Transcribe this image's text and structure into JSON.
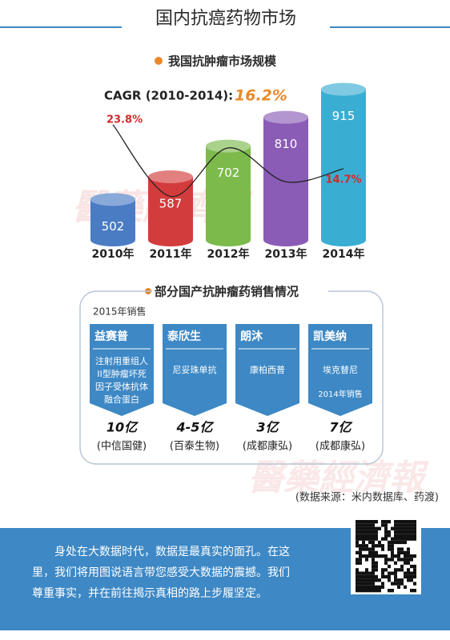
{
  "header": {
    "title": "国内抗癌药物市场"
  },
  "watermark": "醫藥經濟報",
  "chart_data": {
    "type": "bar",
    "title": "我国抗肿瘤市场规模",
    "annotation_label": "CAGR (2010-2014):",
    "annotation_value": "16.2%",
    "categories": [
      "2010年",
      "2011年",
      "2012年",
      "2013年",
      "2014年"
    ],
    "ylim": [
      350,
      950
    ],
    "y2lim": [
      0,
      33
    ],
    "series": [
      {
        "type": "bar",
        "colors": [
          "#4a7cc4",
          "#d33c3c",
          "#7cba4c",
          "#8a5cb6",
          "#3aaed2"
        ],
        "values": [
          502,
          587,
          702,
          810,
          915
        ]
      },
      {
        "type": "line",
        "axis": "y2",
        "color": "#222222",
        "values": [
          23.8,
          9,
          19,
          12,
          14.7
        ],
        "value_labels": [
          "23.8%",
          null,
          null,
          null,
          "14.7%"
        ],
        "label_color": "#d32a2a"
      }
    ]
  },
  "products_section": {
    "title": "部分国产抗肿瘤药销售情况",
    "caption": "2015年销售",
    "items": [
      {
        "name": "益赛普",
        "description": [
          "注射用重组人",
          "II型肿瘤坏死",
          "因子受体抗体",
          "融合蛋白"
        ],
        "sales": "10亿",
        "company": "(中信国健)"
      },
      {
        "name": "泰欣生",
        "description": [
          "尼妥珠单抗"
        ],
        "sales": "4-5亿",
        "company": "(百泰生物)"
      },
      {
        "name": "朗沐",
        "description": [
          "康柏西普"
        ],
        "sales": "3亿",
        "company": "(成都康弘)"
      },
      {
        "name": "凯美纳",
        "description": [
          "埃克替尼"
        ],
        "note": "2014年销售",
        "sales": "7亿",
        "company": "(成都康弘)"
      }
    ]
  },
  "source": "(数据来源：米内数据库、药渡)",
  "footer": {
    "lines": [
      "身处在大数据时代，数据是最真实的面孔。在这",
      "里，我们将用图说语言带您感受大数据的震撼。我们",
      "尊重事实，并在前往揭示真相的路上步履坚定。"
    ]
  }
}
